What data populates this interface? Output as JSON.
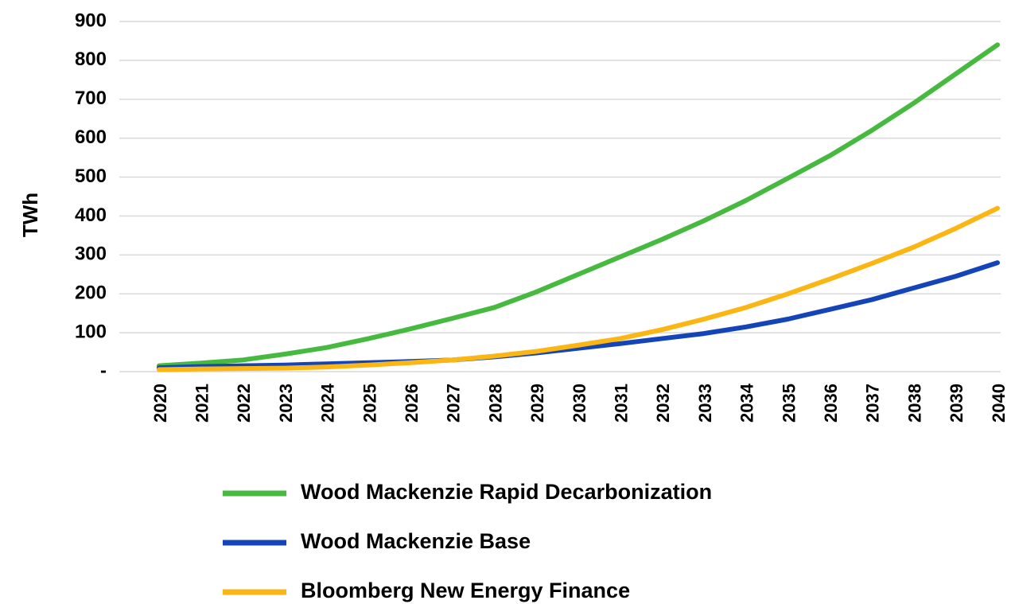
{
  "chart_data": {
    "type": "line",
    "y_label": "TWh",
    "categories": [
      "2020",
      "2021",
      "2022",
      "2023",
      "2024",
      "2025",
      "2026",
      "2027",
      "2028",
      "2029",
      "2030",
      "2031",
      "2032",
      "2033",
      "2034",
      "2035",
      "2036",
      "2037",
      "2038",
      "2039",
      "2040"
    ],
    "series": [
      {
        "name": "Wood Mackenzie Rapid Decarbonization",
        "color": "#46b93f",
        "values": [
          15,
          22,
          30,
          45,
          62,
          85,
          110,
          137,
          165,
          205,
          250,
          295,
          340,
          388,
          440,
          497,
          555,
          620,
          690,
          765,
          840
        ]
      },
      {
        "name": "Wood Mackenzie Base",
        "color": "#1445b8",
        "values": [
          10,
          13,
          15,
          17,
          20,
          23,
          26,
          30,
          38,
          48,
          60,
          72,
          85,
          98,
          115,
          135,
          160,
          185,
          215,
          245,
          280
        ]
      },
      {
        "name": "Bloomberg New Energy Finance",
        "color": "#fbb614",
        "values": [
          5,
          7,
          8,
          9,
          12,
          17,
          23,
          30,
          40,
          52,
          68,
          85,
          108,
          135,
          165,
          200,
          238,
          278,
          320,
          368,
          420
        ]
      }
    ],
    "ylim": [
      0,
      900
    ],
    "yticks": [
      {
        "value": 0,
        "label": "-"
      },
      100,
      200,
      300,
      400,
      500,
      600,
      700,
      800,
      900
    ],
    "grid": true
  }
}
